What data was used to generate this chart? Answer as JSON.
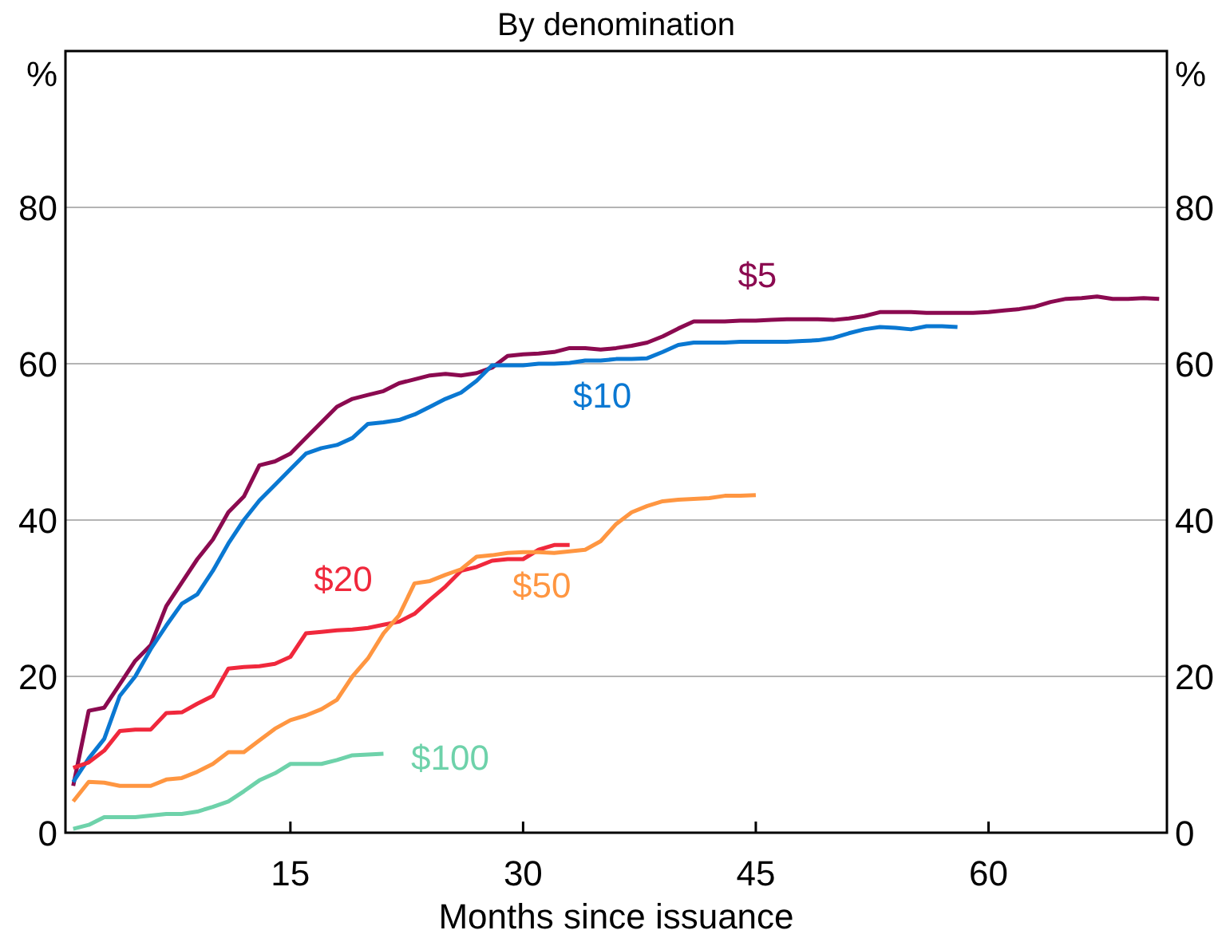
{
  "chart_data": {
    "type": "line",
    "title": "By denomination",
    "xlabel": "Months since issuance",
    "ylabel": "%",
    "y2label": "%",
    "xlim": [
      0.5,
      71.5
    ],
    "xticks": [
      15,
      30,
      45,
      60
    ],
    "ylim": [
      0,
      100
    ],
    "yticks": [
      0,
      20,
      40,
      60,
      80
    ],
    "y2lim": [
      0,
      100
    ],
    "y2ticks": [
      0,
      20,
      40,
      60,
      80
    ],
    "grid": "y",
    "series": [
      {
        "name": "$5",
        "color": "#8b0a50",
        "x": [
          1,
          2,
          3,
          4,
          5,
          6,
          7,
          8,
          9,
          10,
          11,
          12,
          13,
          14,
          15,
          16,
          17,
          18,
          19,
          20,
          21,
          22,
          23,
          24,
          25,
          26,
          27,
          28,
          29,
          30,
          31,
          32,
          33,
          34,
          35,
          36,
          37,
          38,
          39,
          40,
          41,
          42,
          43,
          44,
          45,
          46,
          47,
          48,
          49,
          50,
          51,
          52,
          53,
          54,
          55,
          56,
          57,
          58,
          59,
          60,
          61,
          62,
          63,
          64,
          65,
          66,
          67,
          68,
          69,
          70,
          71
        ],
        "values": [
          6,
          15.6,
          16,
          19,
          22,
          24,
          29,
          32,
          35,
          37.5,
          41,
          43,
          47,
          47.5,
          48.5,
          50.5,
          52.5,
          54.5,
          55.5,
          56,
          56.5,
          57.5,
          58,
          58.5,
          58.7,
          58.5,
          58.8,
          59.5,
          61,
          61.2,
          61.3,
          61.5,
          62,
          62,
          61.8,
          62,
          62.3,
          62.7,
          63.5,
          64.5,
          65.4,
          65.4,
          65.4,
          65.5,
          65.5,
          65.6,
          65.7,
          65.7,
          65.7,
          65.6,
          65.8,
          66.1,
          66.6,
          66.6,
          66.6,
          66.5,
          66.5,
          66.5,
          66.5,
          66.6,
          66.8,
          67,
          67.3,
          67.9,
          68.3,
          68.4,
          68.6,
          68.3,
          68.3,
          68.4,
          68.3
        ]
      },
      {
        "name": "$10",
        "color": "#0a78d2",
        "x": [
          1,
          2,
          3,
          4,
          5,
          6,
          7,
          8,
          9,
          10,
          11,
          12,
          13,
          14,
          15,
          16,
          17,
          18,
          19,
          20,
          21,
          22,
          23,
          24,
          25,
          26,
          27,
          28,
          29,
          30,
          31,
          32,
          33,
          34,
          35,
          36,
          37,
          38,
          39,
          40,
          41,
          42,
          43,
          44,
          45,
          46,
          47,
          48,
          49,
          50,
          51,
          52,
          53,
          54,
          55,
          56,
          57,
          58
        ],
        "values": [
          6.5,
          9.5,
          12,
          17.5,
          20,
          23.5,
          26.5,
          29.3,
          30.5,
          33.5,
          37,
          40,
          42.5,
          44.5,
          46.5,
          48.5,
          49.2,
          49.6,
          50.5,
          52.3,
          52.5,
          52.8,
          53.5,
          54.5,
          55.5,
          56.3,
          57.8,
          59.8,
          59.8,
          59.8,
          60,
          60,
          60.1,
          60.4,
          60.4,
          60.6,
          60.6,
          60.7,
          61.5,
          62.4,
          62.7,
          62.7,
          62.7,
          62.8,
          62.8,
          62.8,
          62.8,
          62.9,
          63,
          63.3,
          63.9,
          64.4,
          64.7,
          64.6,
          64.4,
          64.8,
          64.8,
          64.7
        ]
      },
      {
        "name": "$20",
        "color": "#f0283c",
        "x": [
          1,
          2,
          3,
          4,
          5,
          6,
          7,
          8,
          9,
          10,
          11,
          12,
          13,
          14,
          15,
          16,
          17,
          18,
          19,
          20,
          21,
          22,
          23,
          24,
          25,
          26,
          27,
          28,
          29,
          30,
          31,
          32,
          33
        ],
        "values": [
          8.3,
          9,
          10.5,
          13,
          13.2,
          13.2,
          15.3,
          15.4,
          16.5,
          17.5,
          21,
          21.2,
          21.3,
          21.6,
          22.5,
          25.5,
          25.7,
          25.9,
          26,
          26.2,
          26.6,
          27,
          28,
          29.8,
          31.5,
          33.5,
          34,
          34.8,
          35,
          35,
          36.2,
          36.8,
          36.8
        ]
      },
      {
        "name": "$50",
        "color": "#ff9641",
        "x": [
          1,
          2,
          3,
          4,
          5,
          6,
          7,
          8,
          9,
          10,
          11,
          12,
          13,
          14,
          15,
          16,
          17,
          18,
          19,
          20,
          21,
          22,
          23,
          24,
          25,
          26,
          27,
          28,
          29,
          30,
          31,
          32,
          33,
          34,
          35,
          36,
          37,
          38,
          39,
          40,
          41,
          42,
          43,
          44,
          45
        ],
        "values": [
          4,
          6.5,
          6.4,
          6,
          6,
          6,
          6.8,
          7,
          7.8,
          8.8,
          10.3,
          10.3,
          11.8,
          13.3,
          14.4,
          15,
          15.8,
          17,
          20,
          22.3,
          25.5,
          27.8,
          31.9,
          32.2,
          33,
          33.7,
          35.3,
          35.5,
          35.8,
          35.9,
          35.9,
          35.8,
          36,
          36.2,
          37.3,
          39.5,
          41,
          41.8,
          42.4,
          42.6,
          42.7,
          42.8,
          43.1,
          43.1,
          43.2
        ]
      },
      {
        "name": "$100",
        "color": "#6ed2aa",
        "x": [
          1,
          2,
          3,
          4,
          5,
          6,
          7,
          8,
          9,
          10,
          11,
          12,
          13,
          14,
          15,
          16,
          17,
          18,
          19,
          20,
          21
        ],
        "values": [
          0.5,
          1,
          2,
          2,
          2,
          2.2,
          2.4,
          2.4,
          2.7,
          3.3,
          4,
          5.3,
          6.7,
          7.6,
          8.8,
          8.8,
          8.8,
          9.3,
          9.9,
          10,
          10.1
        ]
      }
    ]
  }
}
